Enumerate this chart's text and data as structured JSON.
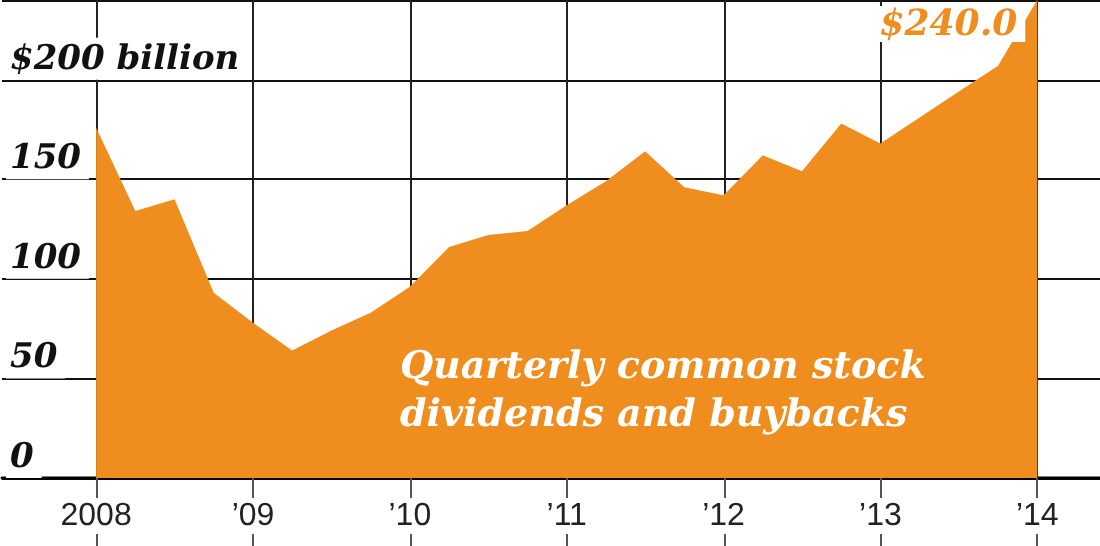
{
  "chart_data": {
    "type": "area",
    "annotations": [
      "Quarterly common stock dividends and buybacks"
    ],
    "x": [
      2008,
      2008.25,
      2008.5,
      2008.75,
      2009,
      2009.25,
      2009.5,
      2009.75,
      2010,
      2010.25,
      2010.5,
      2010.75,
      2011,
      2011.25,
      2011.5,
      2011.75,
      2012,
      2012.25,
      2012.5,
      2012.75,
      2013,
      2013.25,
      2013.5,
      2013.75,
      2014
    ],
    "series": [
      {
        "color": "#ef8e1f",
        "values": [
          176,
          134,
          140,
          93,
          78,
          64,
          74,
          83,
          96,
          116,
          122,
          124,
          137,
          149,
          164,
          146,
          142,
          162,
          154,
          178,
          168,
          181,
          194,
          207,
          240
        ],
        "value_labels": [
          null,
          null,
          null,
          null,
          null,
          null,
          null,
          null,
          null,
          null,
          null,
          null,
          null,
          null,
          null,
          null,
          null,
          null,
          null,
          null,
          null,
          null,
          null,
          null,
          "$240.0"
        ]
      }
    ],
    "xlim": [
      2007.4,
      2014.4
    ],
    "xticks": [
      {
        "value": 2008,
        "label": "2008"
      },
      {
        "value": 2009,
        "label": "’09"
      },
      {
        "value": 2010,
        "label": "’10"
      },
      {
        "value": 2011,
        "label": "’11"
      },
      {
        "value": 2012,
        "label": "’12"
      },
      {
        "value": 2013,
        "label": "’13"
      },
      {
        "value": 2014,
        "label": "’14"
      }
    ],
    "ylim": [
      0,
      240
    ],
    "yticks": [
      0,
      50,
      100,
      150,
      {
        "value": 200,
        "label": "$200 billion"
      }
    ],
    "grid": true
  }
}
